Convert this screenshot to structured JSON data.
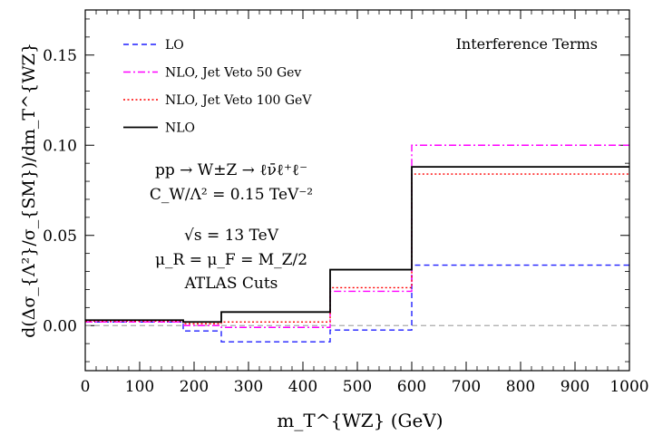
{
  "chart_data": {
    "type": "line",
    "title": "Interference Terms",
    "xlabel": "m_T^{WZ} (GeV)",
    "ylabel": "d(Δσ_{Λ²}/σ_{SM})/dm_T^{WZ}",
    "xlim": [
      0,
      1000
    ],
    "ylim": [
      -0.025,
      0.175
    ],
    "xticks": [
      0,
      100,
      200,
      300,
      400,
      500,
      600,
      700,
      800,
      900,
      1000
    ],
    "yticks": [
      0.0,
      0.05,
      0.1,
      0.15
    ],
    "ytick_labels": [
      "0.00",
      "0.05",
      "0.10",
      "0.15"
    ],
    "bin_edges": [
      0,
      180,
      250,
      450,
      600,
      1000
    ],
    "series": [
      {
        "name": "LO",
        "color": "#1f1fff",
        "dash": "dashed",
        "values": [
          0.002,
          -0.003,
          -0.009,
          -0.0025,
          0.0335
        ]
      },
      {
        "name": "NLO, Jet Veto 50 Gev",
        "color": "#ff00ff",
        "dash": "dashdot",
        "values": [
          0.002,
          0.0,
          -0.001,
          0.019,
          0.1
        ]
      },
      {
        "name": "NLO, Jet Veto 100 GeV",
        "color": "#ff0000",
        "dash": "dotted",
        "values": [
          0.0025,
          0.001,
          0.002,
          0.021,
          0.084
        ]
      },
      {
        "name": "NLO",
        "color": "#000000",
        "dash": "solid",
        "values": [
          0.003,
          0.002,
          0.0075,
          0.031,
          0.088
        ]
      }
    ],
    "reference_line": {
      "y": 0.0,
      "color": "#aaaaaa",
      "dash": "dashed"
    },
    "annotations": [
      "pp → W±Z → ℓν̄ℓ⁺ℓ⁻",
      "C_W/Λ² = 0.15 TeV⁻²",
      "√s = 13 TeV",
      "μ_R = μ_F = M_Z/2",
      "ATLAS Cuts"
    ],
    "legend_position": "top-left",
    "grid": false
  }
}
